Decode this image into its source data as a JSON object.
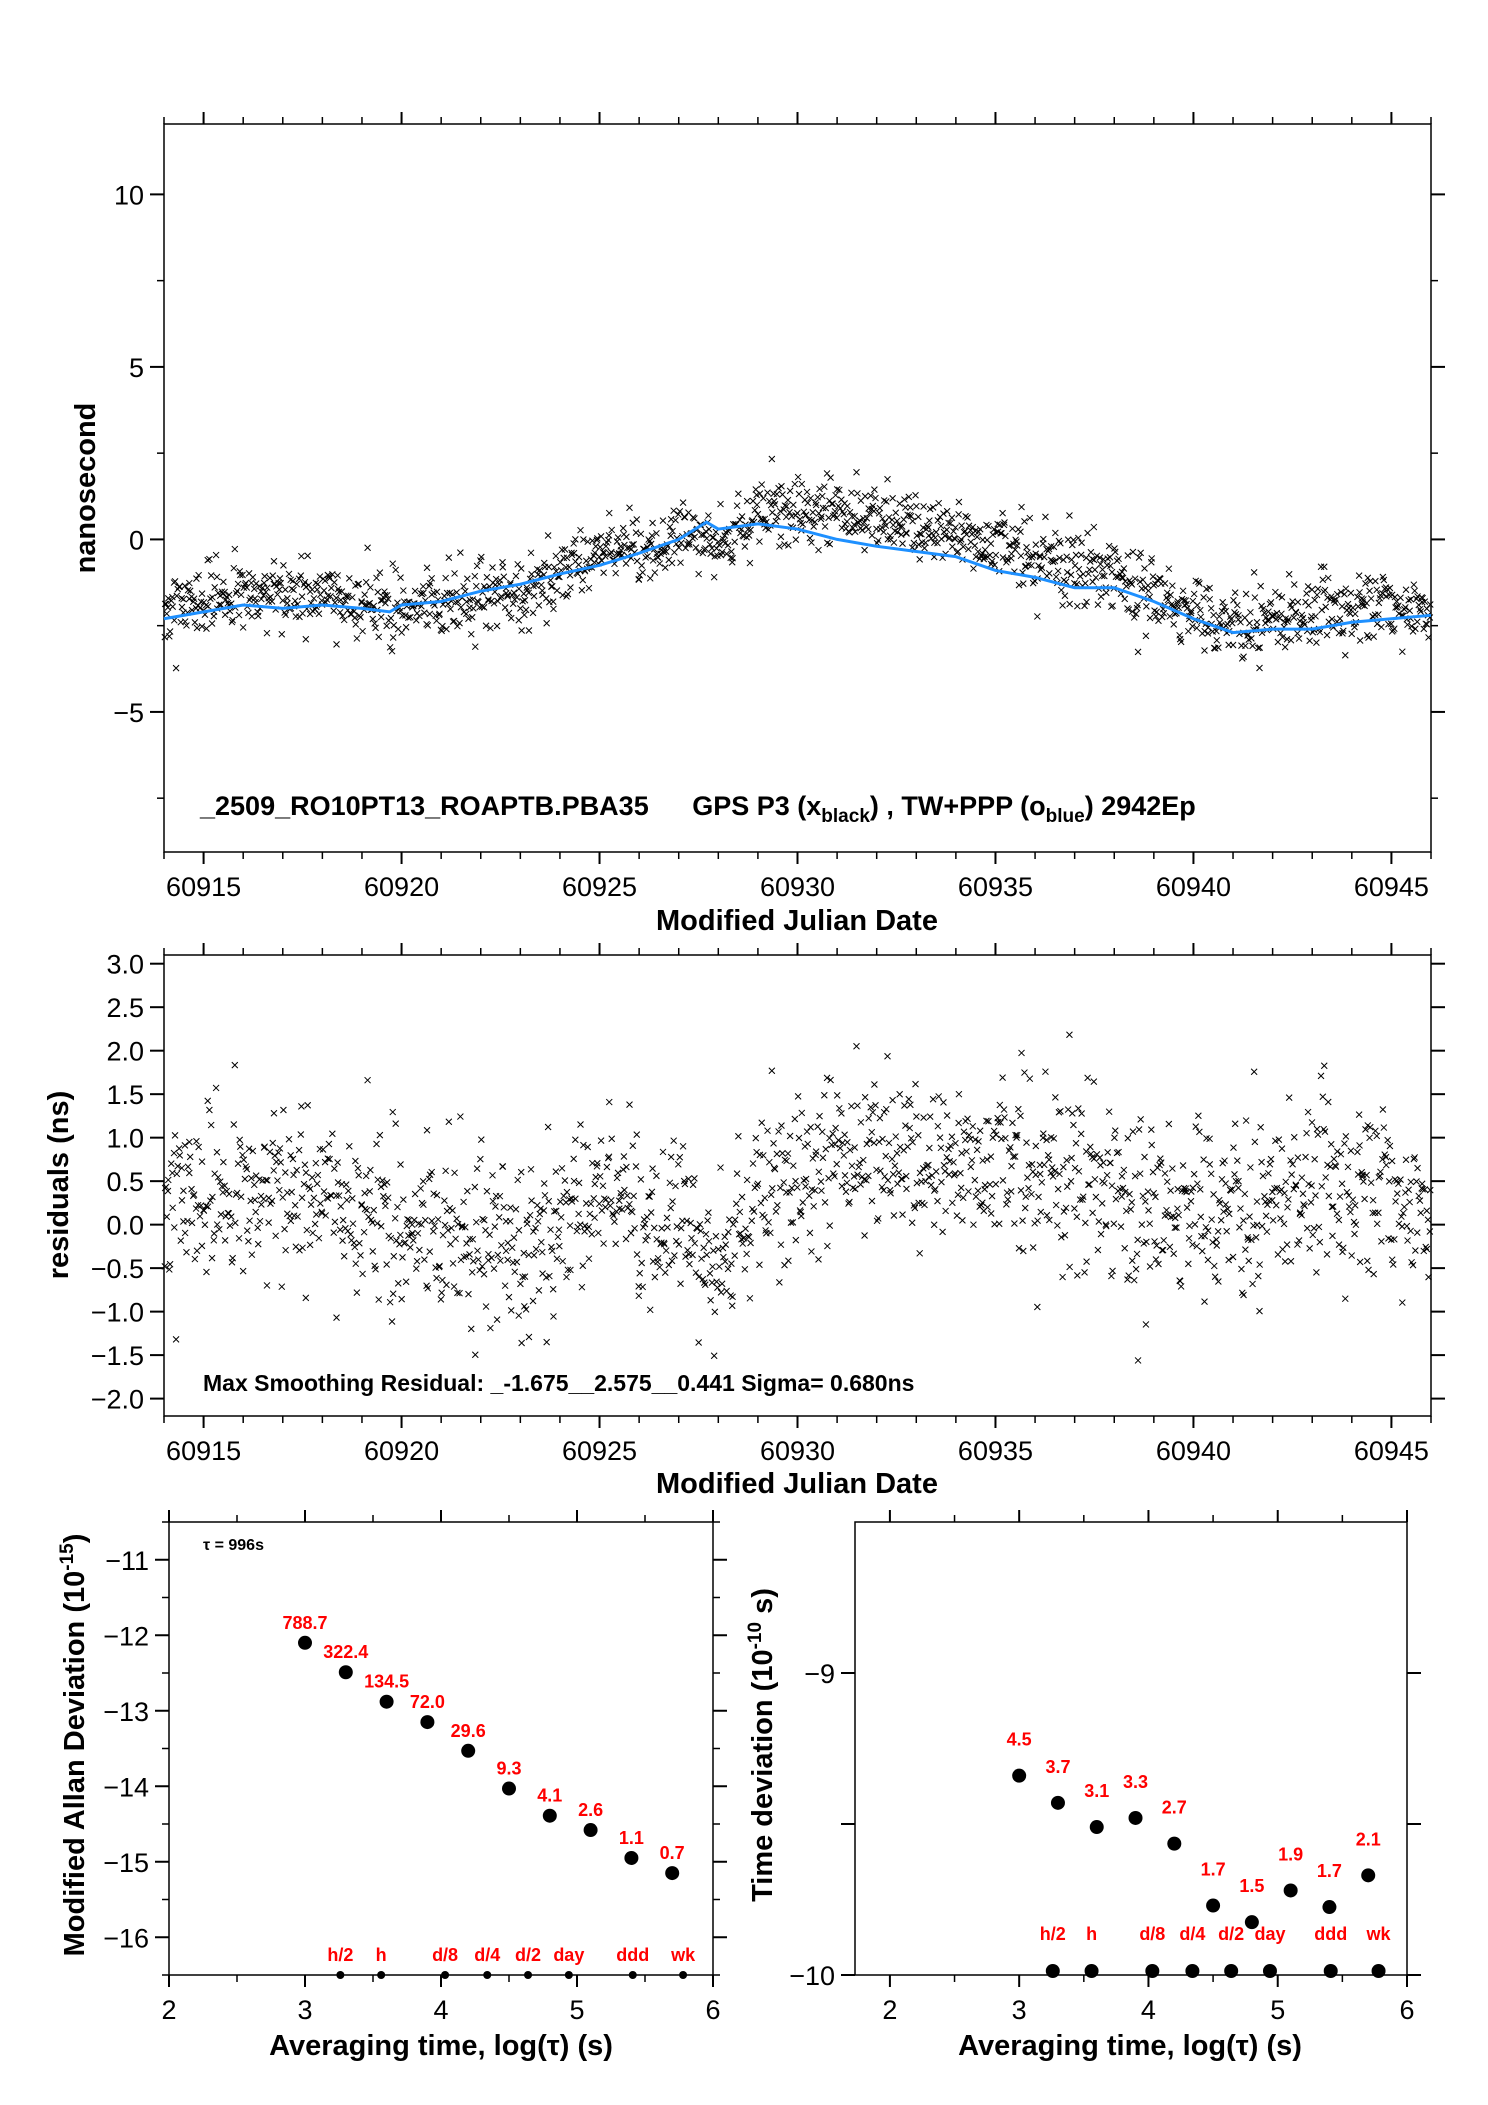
{
  "colors": {
    "scatter": "#000000",
    "smooth_line": "#1e90ff",
    "labels": "#ff0000"
  },
  "chart_data": [
    {
      "type": "scatter",
      "annotation": {
        "main": "_2509_RO10PT13_ROAPTB.PBA35",
        "series_a": "GPS P3 (x",
        "series_a_sub": "black",
        "sep": ") ,  TW+PPP (o",
        "series_b_sub": "blue",
        "tail": ")  2942Ep"
      },
      "xlabel": "Modified Julian Date",
      "ylabel": "nanosecond",
      "xlim": [
        60914.0,
        60946.0
      ],
      "ylim": [
        -9.06,
        12.04
      ],
      "xticks": [
        60915,
        60920,
        60925,
        60930,
        60935,
        60940,
        60945
      ],
      "xtick_labels": [
        "60915",
        "60920",
        "60925",
        "60930",
        "60935",
        "60940",
        "60945"
      ],
      "yticks": [
        -5,
        0,
        5,
        10
      ],
      "ytick_labels": [
        "−5",
        "0",
        "5",
        "10"
      ],
      "grid": false,
      "series": [
        {
          "marker": "x",
          "color": "#000000",
          "trend_x": [
            60914,
            60917,
            60920,
            60923,
            60925,
            60927,
            60928,
            60929,
            60931,
            60934,
            60937,
            60939,
            60941,
            60943,
            60946
          ],
          "trend_offset": [
            0.3,
            0.4,
            0.0,
            -0.3,
            0.3,
            0.0,
            -0.6,
            0.3,
            0.8,
            0.7,
            0.7,
            0.1,
            0.2,
            0.5,
            0.3
          ],
          "sigma": 0.68
        },
        {
          "type": "line",
          "color": "#1e90ff",
          "x": [
            60914,
            60915,
            60916,
            60917,
            60918,
            60919,
            60919.7,
            60920,
            60921,
            60922,
            60923,
            60924,
            60925,
            60926,
            60927,
            60927.7,
            60928,
            60929,
            60930,
            60931,
            60932,
            60933,
            60934,
            60935,
            60936,
            60937,
            60938,
            60939,
            60940,
            60941,
            60942,
            60943,
            60944,
            60945,
            60946
          ],
          "y": [
            -2.3,
            -2.1,
            -1.9,
            -2.0,
            -1.9,
            -2.0,
            -2.1,
            -1.9,
            -1.8,
            -1.5,
            -1.3,
            -1.0,
            -0.75,
            -0.4,
            0.0,
            0.5,
            0.3,
            0.45,
            0.3,
            0.0,
            -0.2,
            -0.35,
            -0.5,
            -0.9,
            -1.1,
            -1.4,
            -1.4,
            -1.8,
            -2.3,
            -2.7,
            -2.6,
            -2.6,
            -2.4,
            -2.3,
            -2.2
          ]
        }
      ]
    },
    {
      "type": "scatter",
      "annotation": "Max Smoothing Residual: _-1.675__2.575__0.441  Sigma= 0.680ns",
      "xlabel": "Modified Julian Date",
      "ylabel": "residuals (ns)",
      "xlim": [
        60914.0,
        60946.0
      ],
      "ylim": [
        -2.2,
        3.1
      ],
      "xticks": [
        60915,
        60920,
        60925,
        60930,
        60935,
        60940,
        60945
      ],
      "xtick_labels": [
        "60915",
        "60920",
        "60925",
        "60930",
        "60935",
        "60940",
        "60945"
      ],
      "yticks": [
        -2.0,
        -1.5,
        -1.0,
        -0.5,
        0.0,
        0.5,
        1.0,
        1.5,
        2.0,
        2.5,
        3.0
      ],
      "ytick_labels": [
        "−2.0",
        "−1.5",
        "−1.0",
        "−0.5",
        "0.0",
        "0.5",
        "1.0",
        "1.5",
        "2.0",
        "2.5",
        "3.0"
      ],
      "grid": false,
      "series": [
        {
          "marker": "x",
          "color": "#000000",
          "min": -1.675,
          "max": 2.575,
          "mean": 0.441,
          "sigma": 0.68
        }
      ]
    },
    {
      "type": "scatter",
      "annotation": "τ = 996s",
      "xlabel": "Averaging time, log(τ) (s)",
      "ylabel": "Modified Allan Deviation (10",
      "ylabel_sup": "-15",
      "ylabel_tail": ")",
      "xlim": [
        2,
        6
      ],
      "ylim": [
        -16.5,
        -10.5
      ],
      "xticks": [
        2,
        3,
        4,
        5,
        6
      ],
      "xtick_labels": [
        "2",
        "3",
        "4",
        "5",
        "6"
      ],
      "yticks": [
        -16,
        -15,
        -14,
        -13,
        -12,
        -11
      ],
      "ytick_labels": [
        "−16",
        "−15",
        "−14",
        "−13",
        "−12",
        "−11"
      ],
      "x": [
        3.0,
        3.3,
        3.6,
        3.9,
        4.2,
        4.5,
        4.8,
        5.1,
        5.4,
        5.7
      ],
      "y": [
        -12.1,
        -12.49,
        -12.88,
        -13.15,
        -13.53,
        -14.03,
        -14.39,
        -14.58,
        -14.95,
        -15.15
      ],
      "point_labels": [
        "788.7",
        "322.4",
        "134.5",
        "72.0",
        "29.6",
        "9.3",
        "4.1",
        "2.6",
        "1.1",
        "0.7"
      ],
      "markers": {
        "x": [
          3.26,
          3.56,
          4.03,
          4.34,
          4.64,
          4.94,
          5.41,
          5.78
        ],
        "labels": [
          "h/2",
          "h",
          "d/8",
          "d/4",
          "d/2",
          "day",
          "ddd",
          "wk"
        ]
      }
    },
    {
      "type": "scatter",
      "xlabel": "Averaging time, log(τ) (s)",
      "ylabel": "Time deviation (10",
      "ylabel_sup": "-10",
      "ylabel_tail": " s)",
      "xlim": [
        1.73,
        6
      ],
      "ylim": [
        -10,
        -8.5
      ],
      "xticks": [
        2,
        3,
        4,
        5,
        6
      ],
      "xtick_labels": [
        "2",
        "3",
        "4",
        "5",
        "6"
      ],
      "yticks": [
        -10,
        -9.5,
        -9
      ],
      "ytick_labels": [
        "−10",
        "",
        "−9"
      ],
      "x": [
        3.0,
        3.3,
        3.6,
        3.9,
        4.2,
        4.5,
        4.8,
        5.1,
        5.4,
        5.7
      ],
      "y": [
        -9.34,
        -9.43,
        -9.51,
        -9.48,
        -9.565,
        -9.77,
        -9.825,
        -9.72,
        -9.775,
        -9.67
      ],
      "point_labels": [
        "4.5",
        "3.7",
        "3.1",
        "3.3",
        "2.7",
        "1.7",
        "1.5",
        "1.9",
        "1.7",
        "2.1"
      ],
      "markers": {
        "x": [
          3.26,
          3.56,
          4.03,
          4.34,
          4.64,
          4.94,
          5.41,
          5.78
        ],
        "labels": [
          "h/2",
          "h",
          "d/8",
          "d/4",
          "d/2",
          "day",
          "ddd",
          "wk"
        ]
      }
    }
  ]
}
